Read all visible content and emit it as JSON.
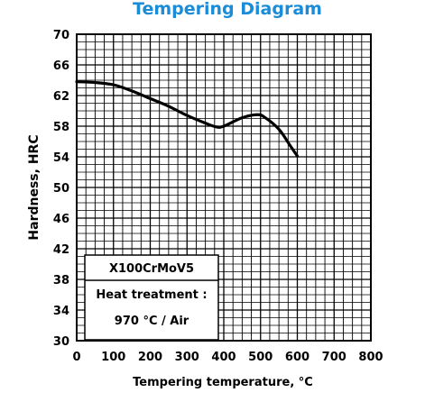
{
  "chart_data": {
    "type": "line",
    "title": "Tempering Diagram",
    "xlabel": "Tempering temperature, °C",
    "ylabel": "Hardness, HRC",
    "xlim": [
      0,
      800
    ],
    "ylim": [
      30,
      70
    ],
    "x_ticks": [
      0,
      100,
      200,
      300,
      400,
      500,
      600,
      700,
      800
    ],
    "y_ticks": [
      30,
      34,
      38,
      42,
      46,
      50,
      54,
      58,
      62,
      66,
      70
    ],
    "grid": true,
    "series": [
      {
        "x": [
          0,
          50,
          100,
          150,
          200,
          250,
          300,
          350,
          380,
          400,
          450,
          490,
          510,
          550,
          580,
          600
        ],
        "y": [
          63.8,
          63.7,
          63.4,
          62.6,
          61.6,
          60.6,
          59.4,
          58.4,
          57.9,
          58.0,
          59.1,
          59.5,
          59.2,
          57.6,
          55.5,
          54.1
        ]
      }
    ],
    "annotations": {
      "material": "X100CrMoV5",
      "treatment_label": "Heat treatment :",
      "treatment_value": "970 °C / Air"
    }
  }
}
